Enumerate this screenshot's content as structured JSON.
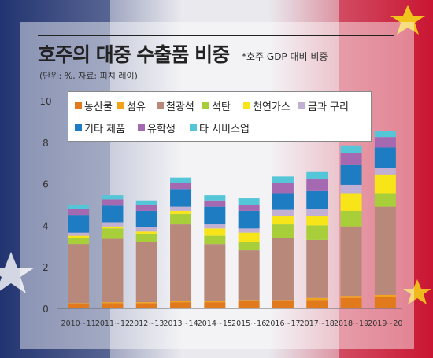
{
  "header": {
    "title": "호주의 대중 수출품 비중",
    "subtitle": "*호주 GDP 대비 비중",
    "unit": "(단위: %, 자료: 피치 레이)"
  },
  "colors": {
    "flag_blue": "#1d2f6e",
    "flag_red": "#c8102e"
  },
  "chart_data": {
    "type": "bar",
    "stacked": true,
    "title": "호주의 대중 수출품 비중",
    "ylabel": "",
    "xlabel": "",
    "ylim": [
      0,
      10
    ],
    "yticks": [
      0,
      2,
      4,
      6,
      8,
      10
    ],
    "grid": false,
    "legend_position": "top",
    "categories": [
      "2010~11",
      "2011~12",
      "2012~13",
      "2013~14",
      "2014~15",
      "2015~16",
      "2016~17",
      "2017~18",
      "2018~19",
      "2019~20"
    ],
    "series": [
      {
        "name": "농산물",
        "color": "#e07a1c",
        "values": [
          0.2,
          0.25,
          0.25,
          0.3,
          0.3,
          0.35,
          0.35,
          0.4,
          0.5,
          0.55
        ]
      },
      {
        "name": "섬유",
        "color": "#f3a21c",
        "values": [
          0.05,
          0.05,
          0.05,
          0.05,
          0.05,
          0.05,
          0.05,
          0.1,
          0.1,
          0.1
        ]
      },
      {
        "name": "철광석",
        "color": "#b8887a",
        "values": [
          2.85,
          3.05,
          2.9,
          3.7,
          2.75,
          2.4,
          3.0,
          2.8,
          3.35,
          4.25
        ]
      },
      {
        "name": "석탄",
        "color": "#a8cf3a",
        "values": [
          0.3,
          0.5,
          0.4,
          0.5,
          0.4,
          0.4,
          0.65,
          0.7,
          0.75,
          0.65
        ]
      },
      {
        "name": "천연가스",
        "color": "#f7e51a",
        "values": [
          0.1,
          0.1,
          0.1,
          0.15,
          0.35,
          0.45,
          0.4,
          0.45,
          0.85,
          0.9
        ]
      },
      {
        "name": "금과 구리",
        "color": "#c2b0d4",
        "values": [
          0.15,
          0.2,
          0.2,
          0.2,
          0.2,
          0.2,
          0.3,
          0.35,
          0.4,
          0.3
        ]
      },
      {
        "name": "기타 제품",
        "color": "#1e7cc2",
        "values": [
          0.85,
          0.8,
          0.8,
          0.85,
          0.85,
          0.85,
          0.8,
          0.85,
          0.95,
          1.0
        ]
      },
      {
        "name": "유학생",
        "color": "#a469b0",
        "values": [
          0.3,
          0.3,
          0.3,
          0.3,
          0.3,
          0.3,
          0.5,
          0.6,
          0.6,
          0.5
        ]
      },
      {
        "name": "타 서비스업",
        "color": "#55c6d8",
        "values": [
          0.2,
          0.2,
          0.2,
          0.25,
          0.25,
          0.3,
          0.3,
          0.35,
          0.35,
          0.3
        ]
      }
    ]
  }
}
